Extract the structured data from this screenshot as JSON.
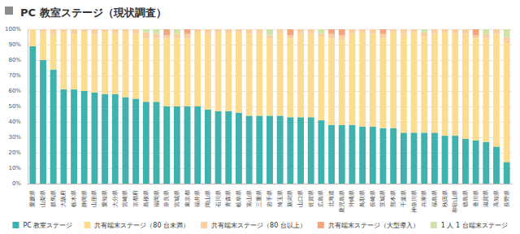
{
  "chart_data": {
    "type": "bar",
    "title": "PC 教室ステージ（現状調査）",
    "stacked": true,
    "grid": true,
    "legend": "bottom",
    "categories": [
      "愛媛県",
      "山梨県",
      "群馬県",
      "大阪府",
      "栃木県",
      "静岡県",
      "山形県",
      "愛知県",
      "大分県",
      "宮崎県",
      "京都府",
      "島根県",
      "福岡県",
      "奈良県",
      "宮城県",
      "東京都",
      "福井県",
      "岡山県",
      "石川県",
      "青森県",
      "岐阜県",
      "富山県",
      "三重県",
      "岩手県",
      "埼玉県",
      "新潟県",
      "山口県",
      "佐賀県",
      "広島県",
      "北海道",
      "鹿児島県",
      "沖縄県",
      "鳥取県",
      "長崎県",
      "茨城県",
      "熊本県",
      "千葉県",
      "神奈川県",
      "兵庫県",
      "福島県",
      "秋田県",
      "和歌山県",
      "徳島県",
      "香川県",
      "滋賀県",
      "高知県",
      "長野県"
    ],
    "series": [
      {
        "name": "PC 教室ステージ",
        "color": "#3fb2ad",
        "values": [
          89,
          80,
          74,
          61,
          61,
          60,
          59,
          58,
          58,
          56,
          55,
          53,
          53,
          50,
          50,
          50,
          50,
          48,
          47,
          47,
          46,
          44,
          44,
          44,
          44,
          43,
          43,
          43,
          41,
          38,
          38,
          38,
          37,
          37,
          36,
          36,
          33,
          33,
          33,
          33,
          31,
          31,
          29,
          28,
          27,
          24,
          14
        ]
      },
      {
        "name": "共有端末ステージ（80 台未満）",
        "color": "#fcdc91",
        "values": [
          11,
          18,
          23,
          37,
          36,
          38,
          38,
          40,
          39,
          42,
          42,
          41,
          41,
          44,
          44,
          44,
          48,
          49,
          51,
          50,
          52,
          53,
          53,
          50,
          53,
          51,
          54,
          54,
          54,
          56,
          55,
          59,
          61,
          60,
          58,
          62,
          64,
          65,
          62,
          64,
          67,
          66,
          68,
          66,
          67,
          73,
          77
        ]
      },
      {
        "name": "共有端末ステージ（80 台以上）",
        "color": "#f9cf9f",
        "values": [
          0,
          2,
          3,
          2,
          3,
          2,
          3,
          2,
          3,
          2,
          3,
          4,
          3,
          2,
          3,
          3,
          2,
          3,
          2,
          3,
          2,
          3,
          3,
          2,
          3,
          2,
          3,
          3,
          2,
          3,
          3,
          3,
          2,
          3,
          3,
          2,
          3,
          2,
          3,
          3,
          2,
          3,
          3,
          2,
          3,
          3,
          4
        ]
      },
      {
        "name": "共有端末ステージ（大型導入）",
        "color": "#f2a57f",
        "values": [
          0,
          0,
          0,
          0,
          0,
          0,
          0,
          0,
          0,
          0,
          0,
          0,
          0,
          4,
          0,
          3,
          0,
          0,
          0,
          0,
          0,
          0,
          0,
          0,
          0,
          4,
          0,
          0,
          0,
          3,
          4,
          0,
          0,
          0,
          3,
          0,
          0,
          0,
          0,
          0,
          0,
          0,
          0,
          4,
          0,
          0,
          0
        ]
      },
      {
        "name": "1 人 1 台端末ステージ",
        "color": "#cfe3a8",
        "values": [
          0,
          0,
          0,
          0,
          0,
          0,
          0,
          0,
          0,
          0,
          0,
          2,
          3,
          0,
          3,
          0,
          0,
          0,
          0,
          0,
          0,
          0,
          0,
          4,
          0,
          0,
          0,
          0,
          3,
          0,
          0,
          0,
          0,
          0,
          0,
          0,
          0,
          0,
          2,
          0,
          0,
          0,
          0,
          0,
          3,
          0,
          5
        ]
      }
    ],
    "ylim": [
      0,
      100
    ],
    "yticks": [
      {
        "value": 0,
        "label": "0%"
      },
      {
        "value": 10,
        "label": "10%"
      },
      {
        "value": 20,
        "label": "20%"
      },
      {
        "value": 30,
        "label": "30%"
      },
      {
        "value": 40,
        "label": "40%"
      },
      {
        "value": 50,
        "label": "50%"
      },
      {
        "value": 60,
        "label": "60%"
      },
      {
        "value": 70,
        "label": "70%"
      },
      {
        "value": 80,
        "label": "80%"
      },
      {
        "value": 90,
        "label": "90%"
      },
      {
        "value": 100,
        "label": "100%"
      }
    ]
  }
}
